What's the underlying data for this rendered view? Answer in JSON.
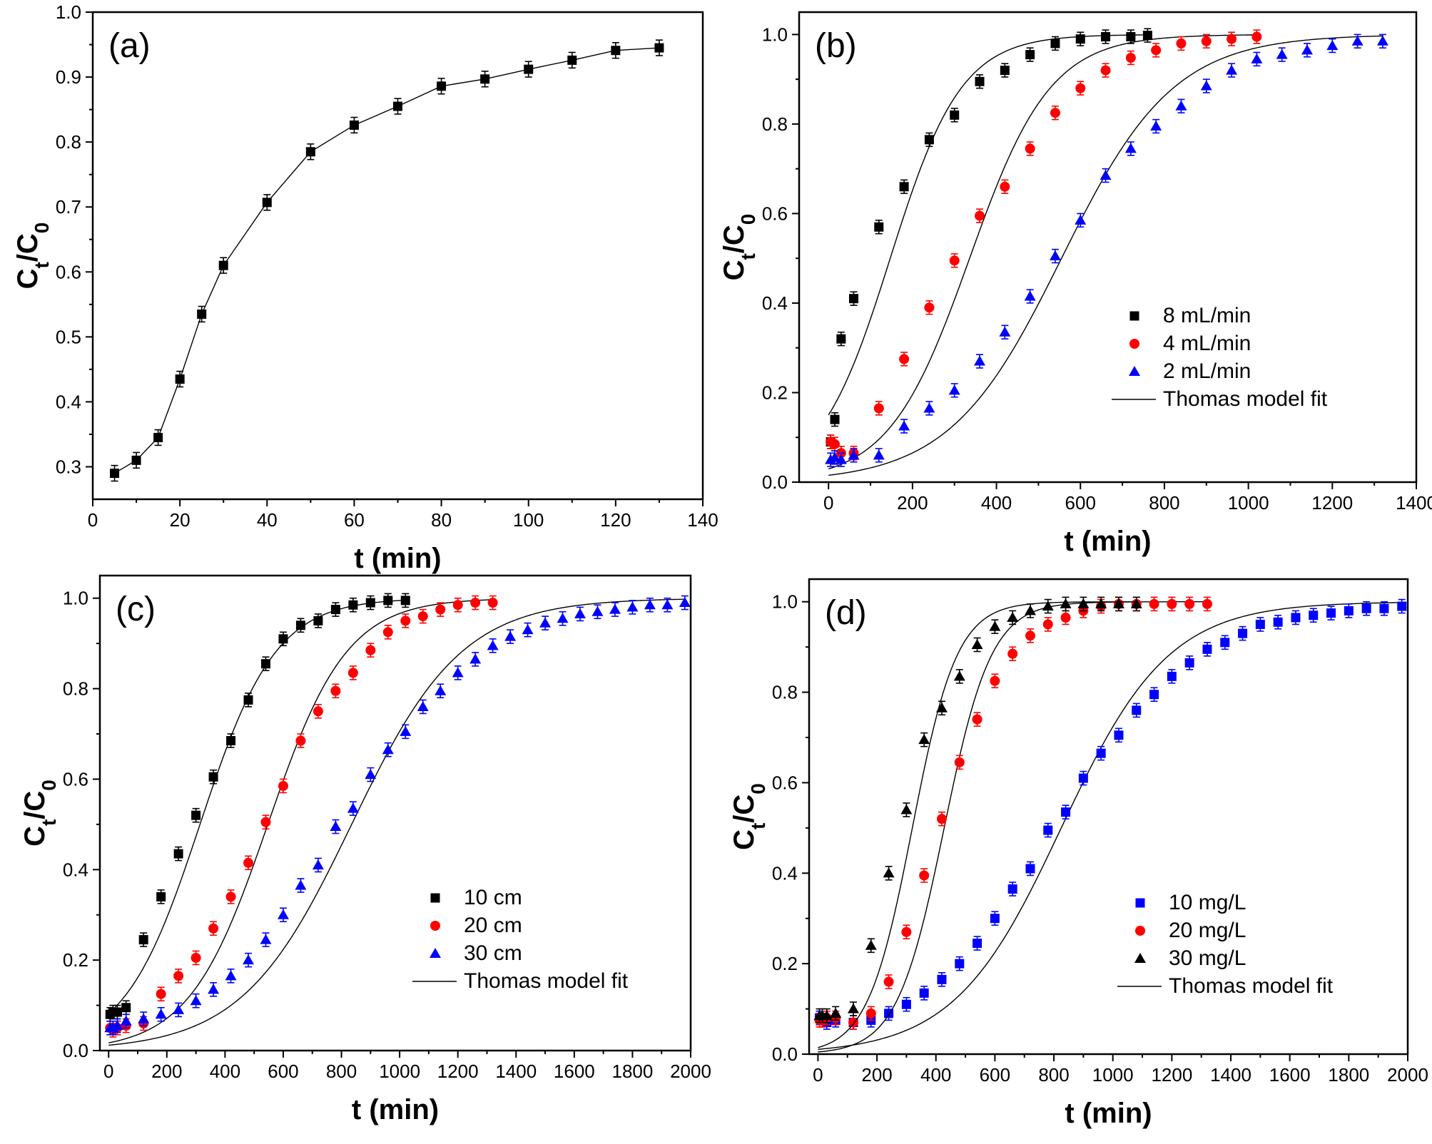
{
  "chart_data": [
    {
      "panel": "(a)",
      "type": "line",
      "xlabel": "t (min)",
      "ylabel": "C_t/C_0",
      "xlim": [
        0,
        140
      ],
      "ylim": [
        0.25,
        1.0
      ],
      "xticks": [
        "0",
        "20",
        "40",
        "60",
        "80",
        "100",
        "120",
        "140"
      ],
      "yticks": [
        "0.3",
        "0.4",
        "0.5",
        "0.6",
        "0.7",
        "0.8",
        "0.9",
        "1.0"
      ],
      "legend": null,
      "series": [
        {
          "name": "data",
          "color": "#000000",
          "marker": "square",
          "err": 0.012,
          "x": [
            5,
            10,
            15,
            20,
            25,
            30,
            40,
            50,
            60,
            70,
            80,
            90,
            100,
            110,
            120,
            130
          ],
          "y": [
            0.29,
            0.31,
            0.345,
            0.435,
            0.535,
            0.61,
            0.707,
            0.785,
            0.826,
            0.855,
            0.886,
            0.897,
            0.912,
            0.926,
            0.941,
            0.945
          ],
          "fit": "connect"
        }
      ]
    },
    {
      "panel": "(b)",
      "type": "scatter",
      "xlabel": "t (min)",
      "ylabel": "C_t/C_0",
      "xlim": [
        -70,
        1400
      ],
      "ylim": [
        0.0,
        1.05
      ],
      "xticks": [
        "0",
        "200",
        "400",
        "600",
        "800",
        "1000",
        "1200",
        "1400"
      ],
      "yticks": [
        "0.0",
        "0.2",
        "0.4",
        "0.6",
        "0.8",
        "1.0"
      ],
      "legend": {
        "placement": "lower-right",
        "fit_label": "Thomas model fit"
      },
      "series": [
        {
          "name": "8 mL/min",
          "color": "#000000",
          "marker": "square",
          "err": 0.015,
          "x": [
            5,
            15,
            30,
            60,
            120,
            180,
            240,
            300,
            360,
            420,
            480,
            540,
            600,
            660,
            720,
            760
          ],
          "y": [
            0.09,
            0.14,
            0.32,
            0.41,
            0.57,
            0.66,
            0.765,
            0.82,
            0.895,
            0.92,
            0.955,
            0.98,
            0.99,
            0.995,
            0.995,
            0.998
          ],
          "fit": {
            "model": "thomas",
            "k": 0.0118,
            "t0": 147,
            "from": 0,
            "to": 760
          }
        },
        {
          "name": "4 mL/min",
          "color": "#ff0000",
          "marker": "circle",
          "err": 0.015,
          "x": [
            5,
            15,
            30,
            60,
            120,
            180,
            240,
            300,
            360,
            420,
            480,
            540,
            600,
            660,
            720,
            780,
            840,
            900,
            960,
            1020
          ],
          "y": [
            0.09,
            0.085,
            0.065,
            0.065,
            0.165,
            0.275,
            0.39,
            0.495,
            0.595,
            0.66,
            0.745,
            0.825,
            0.88,
            0.92,
            0.948,
            0.965,
            0.98,
            0.985,
            0.99,
            0.995
          ],
          "fit": {
            "model": "thomas",
            "k": 0.0104,
            "t0": 336,
            "from": 0,
            "to": 1020
          }
        },
        {
          "name": "2 mL/min",
          "color": "#0000ff",
          "marker": "triangle",
          "err": 0.015,
          "x": [
            5,
            15,
            30,
            60,
            120,
            180,
            240,
            300,
            360,
            420,
            480,
            540,
            600,
            660,
            720,
            780,
            840,
            900,
            960,
            1020,
            1080,
            1140,
            1200,
            1260,
            1320
          ],
          "y": [
            0.05,
            0.055,
            0.05,
            0.06,
            0.06,
            0.125,
            0.165,
            0.205,
            0.27,
            0.335,
            0.415,
            0.505,
            0.585,
            0.685,
            0.745,
            0.795,
            0.84,
            0.885,
            0.92,
            0.945,
            0.955,
            0.965,
            0.975,
            0.985,
            0.985
          ],
          "fit": {
            "model": "thomas",
            "k": 0.0075,
            "t0": 555,
            "from": 0,
            "to": 1320
          }
        }
      ]
    },
    {
      "panel": "(c)",
      "type": "scatter",
      "xlabel": "t (min)",
      "ylabel": "C_t/C_0",
      "xlim": [
        -30,
        2000
      ],
      "ylim": [
        0.0,
        1.05
      ],
      "xticks": [
        "0",
        "200",
        "400",
        "600",
        "800",
        "1000",
        "1200",
        "1400",
        "1600",
        "1800",
        "2000"
      ],
      "yticks": [
        "0.0",
        "0.2",
        "0.4",
        "0.6",
        "0.8",
        "1.0"
      ],
      "legend": {
        "placement": "lower-right",
        "fit_label": "Thomas model fit"
      },
      "series": [
        {
          "name": "10 cm",
          "color": "#000000",
          "marker": "square",
          "err": 0.015,
          "x": [
            5,
            15,
            30,
            60,
            120,
            180,
            240,
            300,
            360,
            420,
            480,
            540,
            600,
            660,
            720,
            780,
            840,
            900,
            960,
            1020
          ],
          "y": [
            0.08,
            0.085,
            0.085,
            0.095,
            0.245,
            0.34,
            0.435,
            0.52,
            0.605,
            0.685,
            0.775,
            0.855,
            0.91,
            0.94,
            0.95,
            0.975,
            0.985,
            0.99,
            0.995,
            0.995
          ],
          "fit": {
            "model": "thomas",
            "k": 0.0077,
            "t0": 314,
            "from": 0,
            "to": 1020
          }
        },
        {
          "name": "20 cm",
          "color": "#ff0000",
          "marker": "circle",
          "err": 0.015,
          "x": [
            5,
            15,
            30,
            60,
            120,
            180,
            240,
            300,
            360,
            420,
            480,
            540,
            600,
            660,
            720,
            780,
            840,
            900,
            960,
            1020,
            1080,
            1140,
            1200,
            1260,
            1320
          ],
          "y": [
            0.05,
            0.045,
            0.05,
            0.055,
            0.06,
            0.125,
            0.165,
            0.205,
            0.27,
            0.34,
            0.415,
            0.505,
            0.585,
            0.685,
            0.75,
            0.795,
            0.835,
            0.885,
            0.925,
            0.95,
            0.96,
            0.975,
            0.985,
            0.99,
            0.99
          ],
          "fit": {
            "model": "thomas",
            "k": 0.0074,
            "t0": 547,
            "from": 0,
            "to": 1320
          }
        },
        {
          "name": "30 cm",
          "color": "#0000ff",
          "marker": "triangle",
          "err": 0.015,
          "x": [
            5,
            15,
            30,
            60,
            120,
            180,
            240,
            300,
            360,
            420,
            480,
            540,
            600,
            660,
            720,
            780,
            840,
            900,
            960,
            1020,
            1080,
            1140,
            1200,
            1260,
            1320,
            1380,
            1440,
            1500,
            1560,
            1620,
            1680,
            1740,
            1800,
            1860,
            1920,
            1980
          ],
          "y": [
            0.05,
            0.05,
            0.055,
            0.065,
            0.07,
            0.08,
            0.09,
            0.11,
            0.135,
            0.165,
            0.2,
            0.245,
            0.3,
            0.365,
            0.41,
            0.495,
            0.535,
            0.61,
            0.665,
            0.705,
            0.76,
            0.795,
            0.835,
            0.865,
            0.895,
            0.915,
            0.93,
            0.945,
            0.955,
            0.965,
            0.97,
            0.975,
            0.98,
            0.985,
            0.985,
            0.99
          ],
          "fit": {
            "model": "thomas",
            "k": 0.0053,
            "t0": 835,
            "from": 0,
            "to": 1980
          }
        }
      ]
    },
    {
      "panel": "(d)",
      "type": "scatter",
      "xlabel": "t (min)",
      "ylabel": "C_t/C_0",
      "xlim": [
        -30,
        2000
      ],
      "ylim": [
        0.0,
        1.05
      ],
      "xticks": [
        "0",
        "200",
        "400",
        "600",
        "800",
        "1000",
        "1200",
        "1400",
        "1600",
        "1800",
        "2000"
      ],
      "yticks": [
        "0.0",
        "0.2",
        "0.4",
        "0.6",
        "0.8",
        "1.0"
      ],
      "legend": {
        "placement": "lower-right",
        "fit_label": "Thomas model fit"
      },
      "series": [
        {
          "name": "10 mg/L",
          "color": "#0000ff",
          "marker": "square",
          "err": 0.015,
          "x": [
            5,
            15,
            30,
            60,
            120,
            180,
            240,
            300,
            360,
            420,
            480,
            540,
            600,
            660,
            720,
            780,
            840,
            900,
            960,
            1020,
            1080,
            1140,
            1200,
            1260,
            1320,
            1380,
            1440,
            1500,
            1560,
            1620,
            1680,
            1740,
            1800,
            1860,
            1920,
            1980
          ],
          "y": [
            0.08,
            0.075,
            0.07,
            0.075,
            0.07,
            0.075,
            0.09,
            0.11,
            0.135,
            0.165,
            0.2,
            0.245,
            0.3,
            0.365,
            0.41,
            0.495,
            0.535,
            0.61,
            0.665,
            0.705,
            0.76,
            0.795,
            0.835,
            0.865,
            0.895,
            0.91,
            0.93,
            0.95,
            0.955,
            0.965,
            0.97,
            0.975,
            0.98,
            0.985,
            0.985,
            0.99
          ],
          "fit": {
            "model": "thomas",
            "k": 0.0055,
            "t0": 825,
            "from": 0,
            "to": 1980
          }
        },
        {
          "name": "20 mg/L",
          "color": "#ff0000",
          "marker": "circle",
          "err": 0.015,
          "x": [
            5,
            15,
            30,
            60,
            120,
            180,
            240,
            300,
            360,
            420,
            480,
            540,
            600,
            660,
            720,
            780,
            840,
            900,
            960,
            1020,
            1080,
            1140,
            1200,
            1260,
            1320
          ],
          "y": [
            0.075,
            0.075,
            0.08,
            0.08,
            0.07,
            0.09,
            0.16,
            0.27,
            0.395,
            0.52,
            0.645,
            0.74,
            0.825,
            0.885,
            0.925,
            0.95,
            0.965,
            0.98,
            0.99,
            0.995,
            0.995,
            0.995,
            0.995,
            0.995,
            0.995
          ],
          "fit": {
            "model": "thomas",
            "k": 0.0125,
            "t0": 428,
            "from": 0,
            "to": 1320
          }
        },
        {
          "name": "30 mg/L",
          "color": "#000000",
          "marker": "triangle",
          "err": 0.015,
          "x": [
            5,
            15,
            30,
            60,
            120,
            180,
            240,
            300,
            360,
            420,
            480,
            540,
            600,
            660,
            720,
            780,
            840,
            900,
            960,
            1020,
            1080
          ],
          "y": [
            0.085,
            0.085,
            0.085,
            0.09,
            0.1,
            0.24,
            0.4,
            0.54,
            0.695,
            0.765,
            0.835,
            0.905,
            0.945,
            0.965,
            0.98,
            0.99,
            0.995,
            0.995,
            0.995,
            0.995,
            0.995
          ],
          "fit": {
            "model": "thomas",
            "k": 0.0132,
            "t0": 320,
            "from": 0,
            "to": 1080
          }
        }
      ]
    }
  ]
}
